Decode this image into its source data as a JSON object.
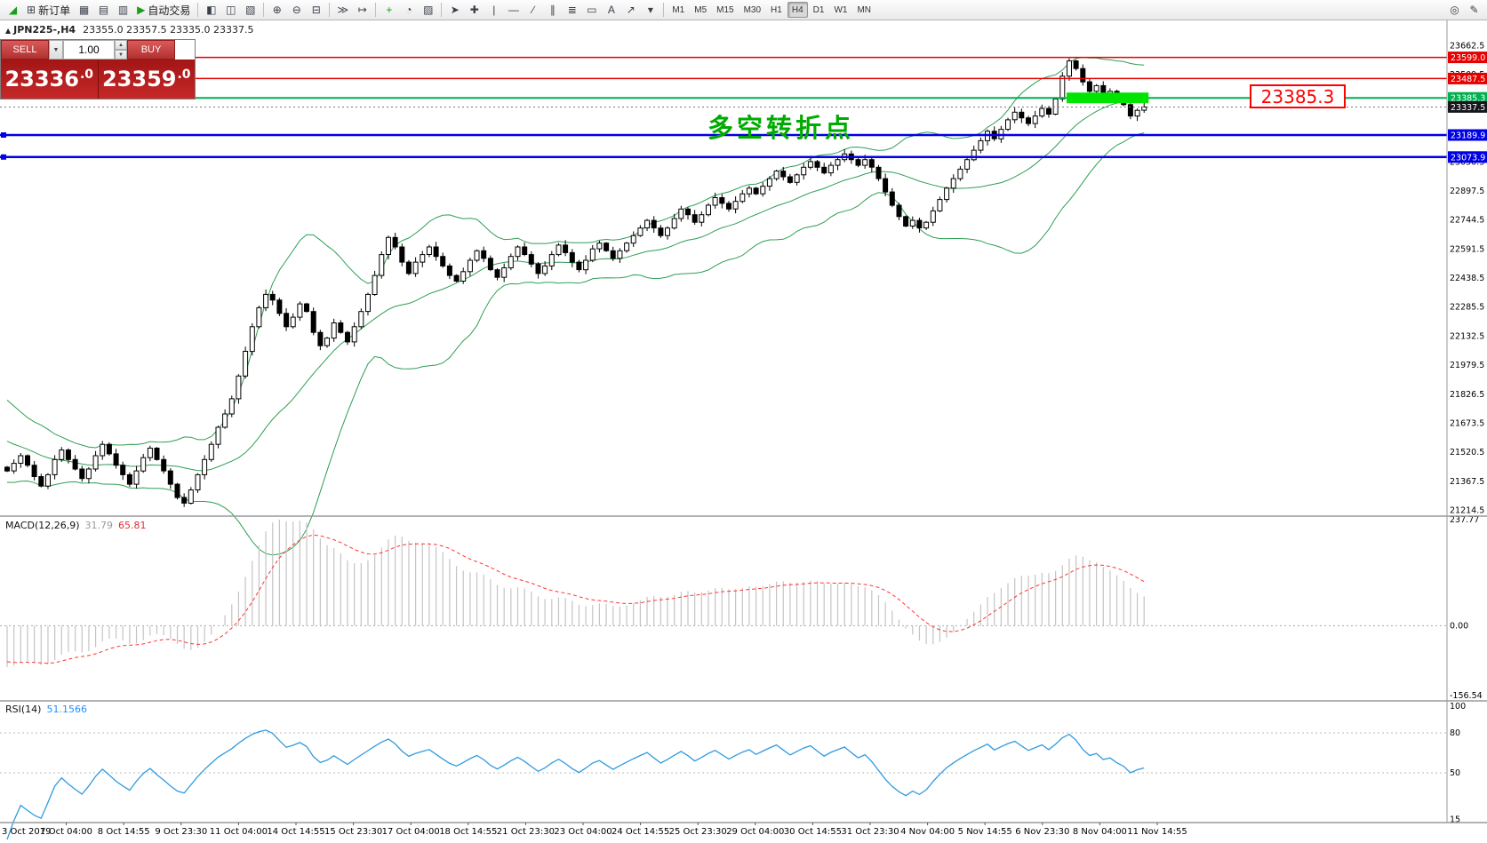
{
  "toolbar": {
    "items": [
      {
        "name": "app-icon",
        "glyph": "◢",
        "color": "#18a018",
        "interactable": false
      },
      {
        "name": "new-order-button",
        "glyph": "⊞",
        "label": "新订单"
      },
      {
        "name": "market-watch-icon",
        "glyph": "▦"
      },
      {
        "name": "data-window-icon",
        "glyph": "▤"
      },
      {
        "name": "navigator-icon",
        "glyph": "▥"
      },
      {
        "name": "autotrade-button",
        "glyph": "▶",
        "label": "自动交易",
        "color": "#18a018"
      },
      {
        "sep": true
      },
      {
        "name": "new-chart-icon",
        "glyph": "◧"
      },
      {
        "name": "tile-windows-icon",
        "glyph": "◫"
      },
      {
        "name": "cascade-windows-icon",
        "glyph": "▧"
      },
      {
        "sep": true
      },
      {
        "name": "zoom-in-icon",
        "glyph": "⊕"
      },
      {
        "name": "zoom-out-icon",
        "glyph": "⊖"
      },
      {
        "name": "grid-icon",
        "glyph": "⊟"
      },
      {
        "sep": true
      },
      {
        "name": "auto-scroll-icon",
        "glyph": "≫"
      },
      {
        "name": "chart-shift-icon",
        "glyph": "↦"
      },
      {
        "sep": true
      },
      {
        "name": "indicators-icon",
        "glyph": "+",
        "color": "#18a018"
      },
      {
        "name": "periods-icon",
        "glyph": "◔"
      },
      {
        "name": "templates-icon",
        "glyph": "▨"
      },
      {
        "sep": true
      },
      {
        "name": "cursor-icon",
        "glyph": "➤"
      },
      {
        "name": "crosshair-icon",
        "glyph": "✚"
      },
      {
        "name": "vertical-line-icon",
        "glyph": "|"
      },
      {
        "name": "horizontal-line-icon",
        "glyph": "—"
      },
      {
        "name": "trendline-icon",
        "glyph": "∕"
      },
      {
        "name": "channel-icon",
        "glyph": "∥"
      },
      {
        "name": "fibonacci-icon",
        "glyph": "≣"
      },
      {
        "name": "shapes-icon",
        "glyph": "▭"
      },
      {
        "name": "text-icon",
        "glyph": "A"
      },
      {
        "name": "arrow-tools-icon",
        "glyph": "↗"
      },
      {
        "name": "objects-dropdown-icon",
        "glyph": "▾"
      }
    ],
    "timeframes": [
      "M1",
      "M5",
      "M15",
      "M30",
      "H1",
      "H4",
      "D1",
      "W1",
      "MN"
    ],
    "active_timeframe": "H4",
    "right_items": [
      {
        "name": "search-icon",
        "glyph": "◎"
      },
      {
        "name": "pencil-icon",
        "glyph": "✎"
      }
    ]
  },
  "symbol_info": {
    "marker": "▲",
    "symbol": "JPN225-,H4",
    "ohlc": "23355.0 23357.5 23335.0 23337.5"
  },
  "one_click": {
    "sell_label": "SELL",
    "buy_label": "BUY",
    "volume": "1.00",
    "combo_icon": "▼",
    "up_icon": "▲",
    "down_icon": "▼",
    "sell_big": "23336",
    "sell_sup": ".0",
    "buy_big": "23359",
    "buy_sup": ".0"
  },
  "main_chart": {
    "price_axis": {
      "max": 23700,
      "min": 21210,
      "ticks": [
        23662.5,
        23509.5,
        23356.5,
        23203.5,
        23050.5,
        22897.5,
        22744.5,
        22591.5,
        22438.5,
        22285.5,
        22132.5,
        21979.5,
        21826.5,
        21673.5,
        21520.5,
        21367.5,
        21214.5
      ]
    },
    "levels": [
      {
        "price": 23599.0,
        "color": "#e60000",
        "width": 1.5
      },
      {
        "price": 23487.5,
        "color": "#e60000",
        "width": 1.5
      },
      {
        "price": 23385.3,
        "color": "#00b050",
        "width": 2
      },
      {
        "price": 23189.9,
        "color": "#0000e6",
        "width": 2.5,
        "handle": true
      },
      {
        "price": 23073.9,
        "color": "#0000e6",
        "width": 2.5,
        "handle": true
      }
    ],
    "bid": {
      "price": 23337.5,
      "tag_color": "#16161d"
    },
    "annotation": {
      "text": "多空转折点",
      "color": "#00ab00"
    },
    "price_note": {
      "text": "23385.3",
      "color": "#ff0000"
    },
    "highlight": {
      "price": 23385.3,
      "from_bar": 156,
      "to_bar": 167,
      "color": "#00e400"
    },
    "colors": {
      "bull": "#ffffff",
      "bear": "#000000",
      "outline": "#000000",
      "bands": "#2e9e53"
    },
    "warmup_closes": [
      21800,
      21780,
      21750,
      21730,
      21700,
      21680,
      21650,
      21640,
      21610,
      21590,
      21570,
      21550,
      21530,
      21520,
      21500,
      21490,
      21470,
      21460,
      21450,
      21440
    ],
    "closes": [
      21420,
      21460,
      21500,
      21450,
      21390,
      21340,
      21400,
      21480,
      21530,
      21480,
      21430,
      21380,
      21430,
      21500,
      21560,
      21510,
      21450,
      21400,
      21350,
      21420,
      21490,
      21540,
      21480,
      21420,
      21350,
      21280,
      21250,
      21320,
      21400,
      21480,
      21560,
      21650,
      21720,
      21800,
      21920,
      22050,
      22180,
      22280,
      22350,
      22320,
      22250,
      22180,
      22230,
      22300,
      22260,
      22150,
      22080,
      22120,
      22200,
      22150,
      22100,
      22180,
      22260,
      22350,
      22450,
      22560,
      22650,
      22600,
      22520,
      22460,
      22520,
      22560,
      22600,
      22550,
      22500,
      22450,
      22420,
      22470,
      22530,
      22580,
      22540,
      22480,
      22440,
      22490,
      22550,
      22600,
      22560,
      22510,
      22460,
      22500,
      22560,
      22610,
      22570,
      22520,
      22480,
      22530,
      22590,
      22620,
      22580,
      22540,
      22580,
      22620,
      22660,
      22700,
      22740,
      22700,
      22660,
      22700,
      22750,
      22800,
      22770,
      22730,
      22770,
      22820,
      22860,
      22830,
      22800,
      22840,
      22880,
      22910,
      22880,
      22920,
      22960,
      23000,
      22970,
      22940,
      22980,
      23020,
      23050,
      23020,
      22990,
      23030,
      23060,
      23090,
      23060,
      23030,
      23060,
      23020,
      22960,
      22890,
      22820,
      22760,
      22710,
      22740,
      22700,
      22730,
      22790,
      22850,
      22910,
      22960,
      23010,
      23060,
      23110,
      23160,
      23210,
      23170,
      23220,
      23270,
      23310,
      23280,
      23250,
      23290,
      23330,
      23300,
      23380,
      23500,
      23580,
      23540,
      23470,
      23420,
      23450,
      23400,
      23420,
      23380,
      23350,
      23290,
      23320,
      23337.5
    ]
  },
  "macd_panel": {
    "label": "MACD(12,26,9)",
    "main_value": "31.79",
    "signal_value": "65.81",
    "ticks": [
      237.77,
      0.0,
      -156.54
    ],
    "colors": {
      "histogram": "#c4c4c4",
      "signal": "#ff3333"
    }
  },
  "rsi_panel": {
    "label": "RSI(14)",
    "value": "51.1566",
    "ticks": [
      100,
      80,
      50,
      15
    ],
    "levels": [
      80,
      50
    ],
    "color": "#2f9be0"
  },
  "time_axis": {
    "labels": [
      "3 Oct 2019",
      "7 Oct 04:00",
      "8 Oct 14:55",
      "9 Oct 23:30",
      "11 Oct 04:00",
      "14 Oct 14:55",
      "15 Oct 23:30",
      "17 Oct 04:00",
      "18 Oct 14:55",
      "21 Oct 23:30",
      "23 Oct 04:00",
      "24 Oct 14:55",
      "25 Oct 23:30",
      "29 Oct 04:00",
      "30 Oct 14:55",
      "31 Oct 23:30",
      "4 Nov 04:00",
      "5 Nov 14:55",
      "6 Nov 23:30",
      "8 Nov 04:00",
      "11 Nov 14:55"
    ]
  }
}
